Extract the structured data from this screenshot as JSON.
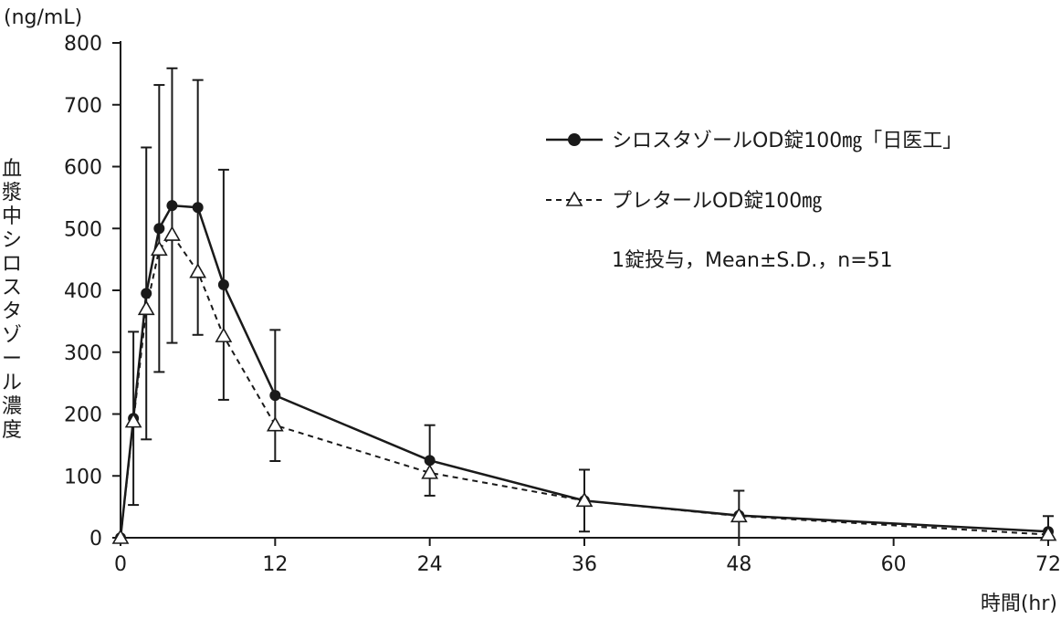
{
  "chart_data": {
    "type": "line",
    "y_unit_label": "(ng/mL)",
    "ylabel": "血漿中シロスタゾール濃度",
    "xlabel": "時間(hr)",
    "xlim": [
      0,
      72
    ],
    "ylim": [
      0,
      800
    ],
    "x_ticks": [
      0,
      12,
      24,
      36,
      48,
      60,
      72
    ],
    "y_ticks": [
      0,
      100,
      200,
      300,
      400,
      500,
      600,
      700,
      800
    ],
    "legend_position": "top-right",
    "annotation": "1錠投与，Mean±S.D.，n=51",
    "series": [
      {
        "name": "シロスタゾールOD錠100㎎「日医工」",
        "marker": "filled-circle",
        "line_style": "solid",
        "x": [
          0,
          1,
          2,
          3,
          4,
          6,
          8,
          12,
          24,
          36,
          48,
          72
        ],
        "y": [
          0,
          193,
          395,
          500,
          537,
          534,
          409,
          230,
          125,
          60,
          36,
          10
        ],
        "sd": [
          0,
          140,
          236,
          232,
          222,
          206,
          186,
          106,
          57,
          50,
          40,
          25
        ]
      },
      {
        "name": "プレタールOD錠100㎎",
        "marker": "open-triangle",
        "line_style": "dashed",
        "x": [
          0,
          1,
          2,
          3,
          4,
          6,
          8,
          12,
          24,
          36,
          48,
          72
        ],
        "y": [
          0,
          188,
          370,
          466,
          490,
          430,
          326,
          182,
          105,
          60,
          35,
          5
        ],
        "sd": []
      }
    ]
  }
}
